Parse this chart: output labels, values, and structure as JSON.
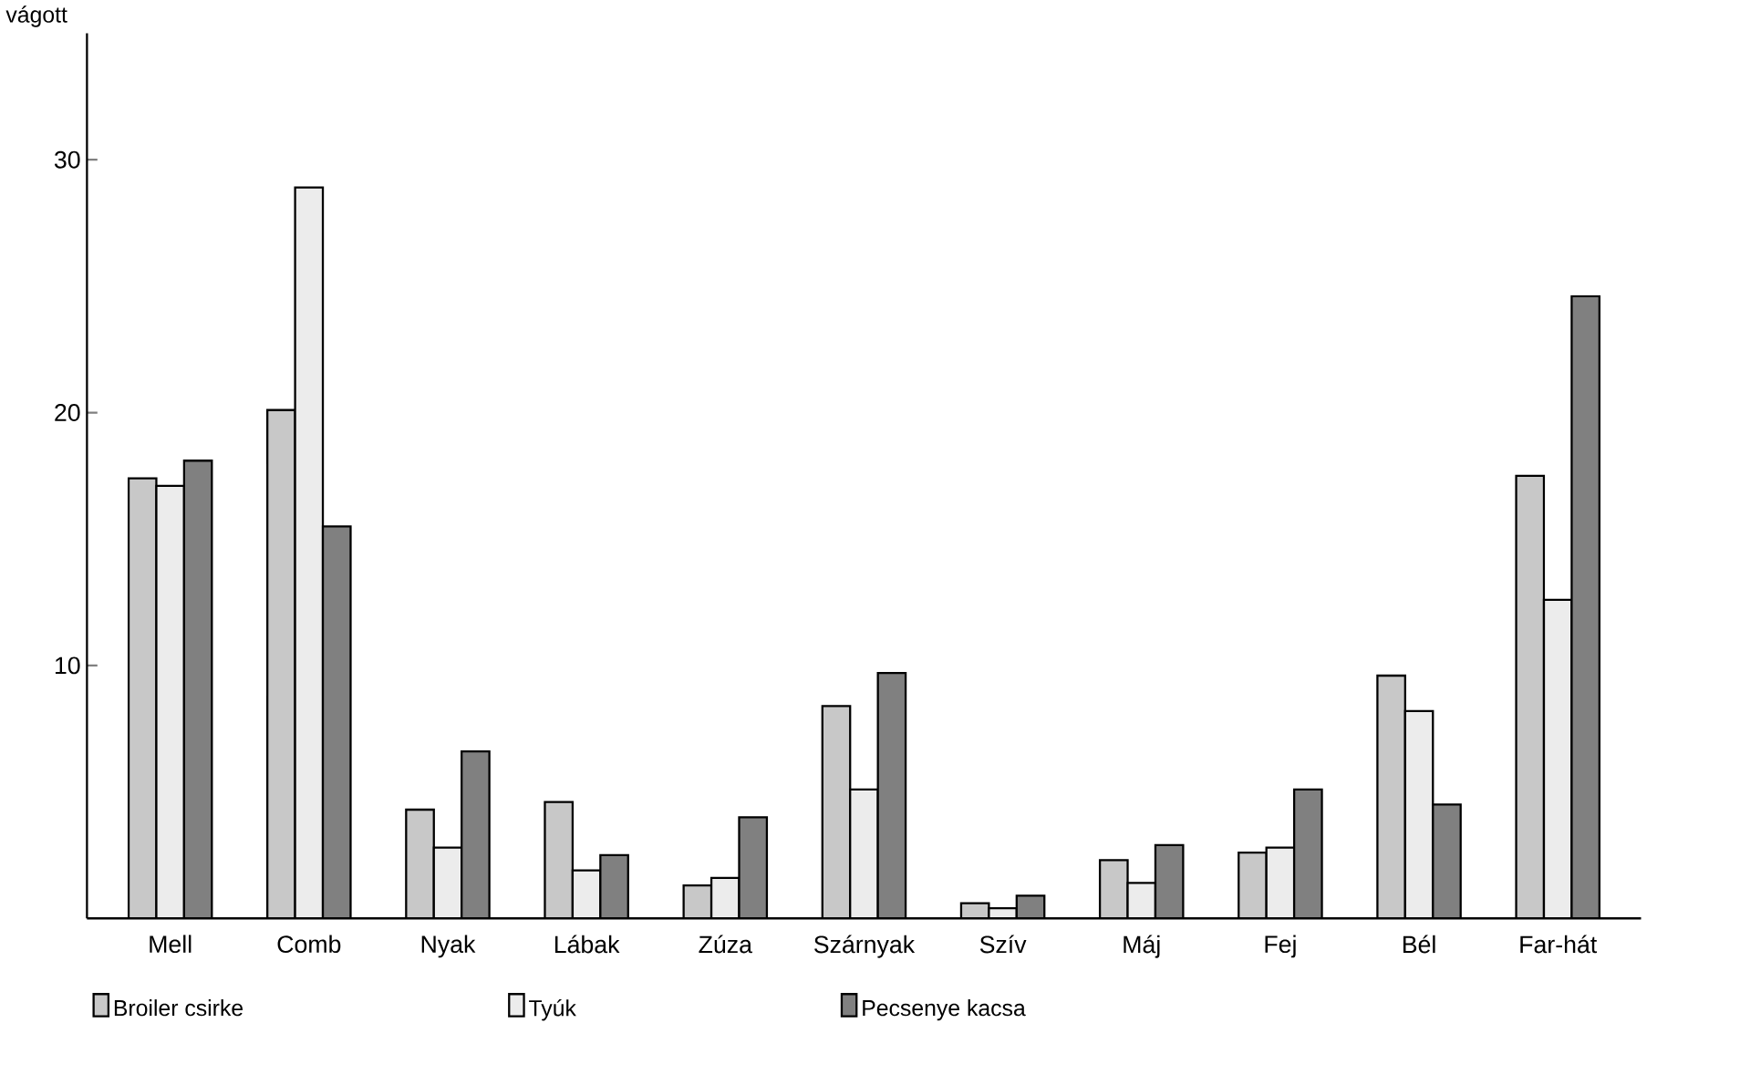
{
  "chart_data": {
    "type": "bar",
    "ylabel": "vágott",
    "categories": [
      "Mell",
      "Comb",
      "Nyak",
      "Lábak",
      "Zúza",
      "Szárnyak",
      "Szív",
      "Máj",
      "Fej",
      "Bél",
      "Far-hát"
    ],
    "series": [
      {
        "name": "Broiler csirke",
        "color": "#c8c8c8",
        "values": [
          17.4,
          20.1,
          4.3,
          4.6,
          1.3,
          8.4,
          0.6,
          2.3,
          2.6,
          9.6,
          17.5
        ]
      },
      {
        "name": "Tyúk",
        "color": "#ececec",
        "values": [
          17.1,
          28.9,
          2.8,
          1.9,
          1.6,
          5.1,
          0.4,
          1.4,
          2.8,
          8.2,
          12.6
        ]
      },
      {
        "name": "Pecsenye kacsa",
        "color": "#808080",
        "values": [
          18.1,
          15.5,
          6.6,
          2.5,
          4.0,
          9.7,
          0.9,
          2.9,
          5.1,
          4.5,
          24.6
        ]
      }
    ],
    "ylim": [
      0,
      35
    ],
    "yticks": [
      10,
      20,
      30
    ],
    "legend": "bottom"
  }
}
